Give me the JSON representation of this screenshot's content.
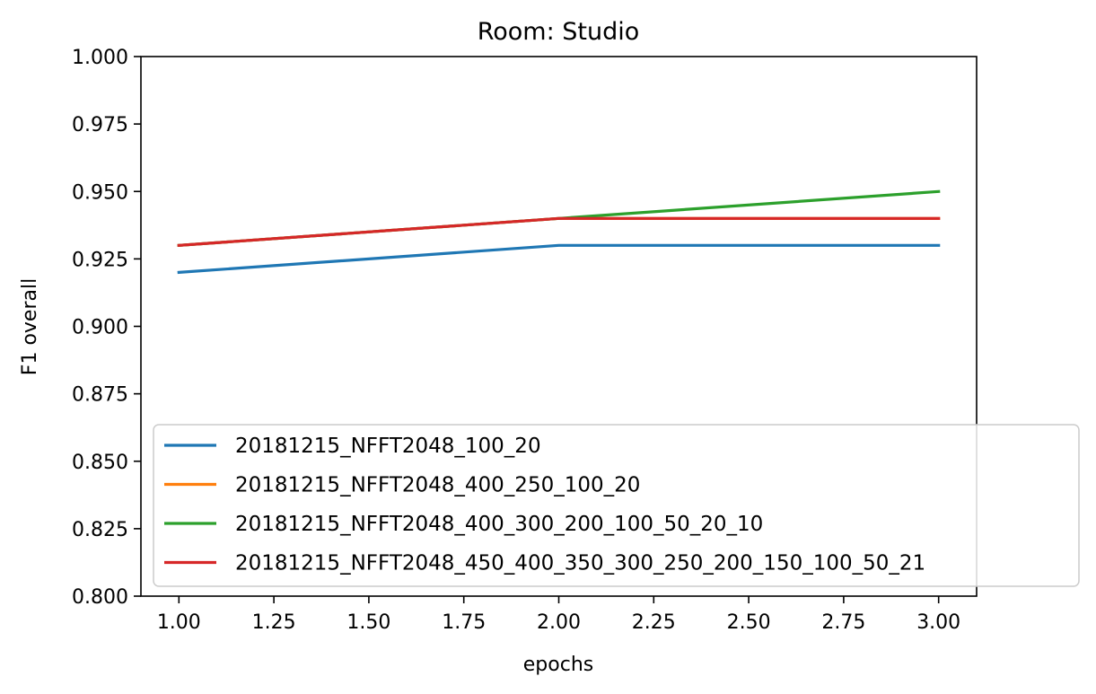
{
  "chart_data": {
    "type": "line",
    "title": "Room: Studio",
    "xlabel": "epochs",
    "ylabel": "F1 overall",
    "xlim": [
      0.9,
      3.1
    ],
    "ylim": [
      0.8,
      1.0
    ],
    "x_ticks": [
      "1.00",
      "1.25",
      "1.50",
      "1.75",
      "2.00",
      "2.25",
      "2.50",
      "2.75",
      "3.00"
    ],
    "y_ticks": [
      "0.800",
      "0.825",
      "0.850",
      "0.875",
      "0.900",
      "0.925",
      "0.950",
      "0.975",
      "1.000"
    ],
    "grid": false,
    "legend_position": "lower-left",
    "x": [
      1,
      2,
      3
    ],
    "series": [
      {
        "name": "20181215_NFFT2048_100_20",
        "color": "#1f77b4",
        "values": [
          0.92,
          0.93,
          0.93
        ]
      },
      {
        "name": "20181215_NFFT2048_400_250_100_20",
        "color": "#ff7f0e",
        "values": [
          0.93,
          0.94,
          0.94
        ]
      },
      {
        "name": "20181215_NFFT2048_400_300_200_100_50_20_10",
        "color": "#2ca02c",
        "values": [
          0.93,
          0.94,
          0.95
        ]
      },
      {
        "name": "20181215_NFFT2048_450_400_350_300_250_200_150_100_50_21",
        "color": "#d62728",
        "values": [
          0.93,
          0.94,
          0.94
        ]
      }
    ]
  }
}
